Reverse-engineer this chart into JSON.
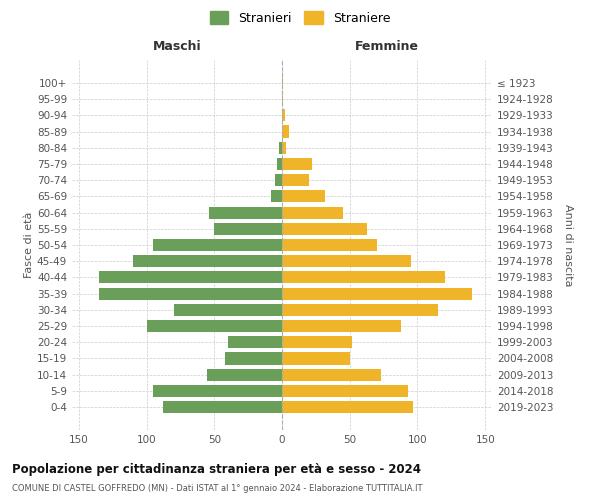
{
  "age_groups": [
    "0-4",
    "5-9",
    "10-14",
    "15-19",
    "20-24",
    "25-29",
    "30-34",
    "35-39",
    "40-44",
    "45-49",
    "50-54",
    "55-59",
    "60-64",
    "65-69",
    "70-74",
    "75-79",
    "80-84",
    "85-89",
    "90-94",
    "95-99",
    "100+"
  ],
  "birth_years": [
    "2019-2023",
    "2014-2018",
    "2009-2013",
    "2004-2008",
    "1999-2003",
    "1994-1998",
    "1989-1993",
    "1984-1988",
    "1979-1983",
    "1974-1978",
    "1969-1973",
    "1964-1968",
    "1959-1963",
    "1954-1958",
    "1949-1953",
    "1944-1948",
    "1939-1943",
    "1934-1938",
    "1929-1933",
    "1924-1928",
    "≤ 1923"
  ],
  "males": [
    88,
    95,
    55,
    42,
    40,
    100,
    80,
    135,
    135,
    110,
    95,
    50,
    54,
    8,
    5,
    4,
    2,
    0,
    0,
    0,
    0
  ],
  "females": [
    97,
    93,
    73,
    50,
    52,
    88,
    115,
    140,
    120,
    95,
    70,
    63,
    45,
    32,
    20,
    22,
    3,
    5,
    2,
    1,
    1
  ],
  "male_color": "#6a9f5a",
  "female_color": "#f0b429",
  "bg_color": "#ffffff",
  "grid_color": "#cccccc",
  "title": "Popolazione per cittadinanza straniera per età e sesso - 2024",
  "subtitle": "COMUNE DI CASTEL GOFFREDO (MN) - Dati ISTAT al 1° gennaio 2024 - Elaborazione TUTTITALIA.IT",
  "left_label": "Maschi",
  "right_label": "Femmine",
  "ylabel_left": "Fasce di età",
  "ylabel_right": "Anni di nascita",
  "legend_male": "Stranieri",
  "legend_female": "Straniere",
  "xlim": 155,
  "bar_height": 0.75
}
